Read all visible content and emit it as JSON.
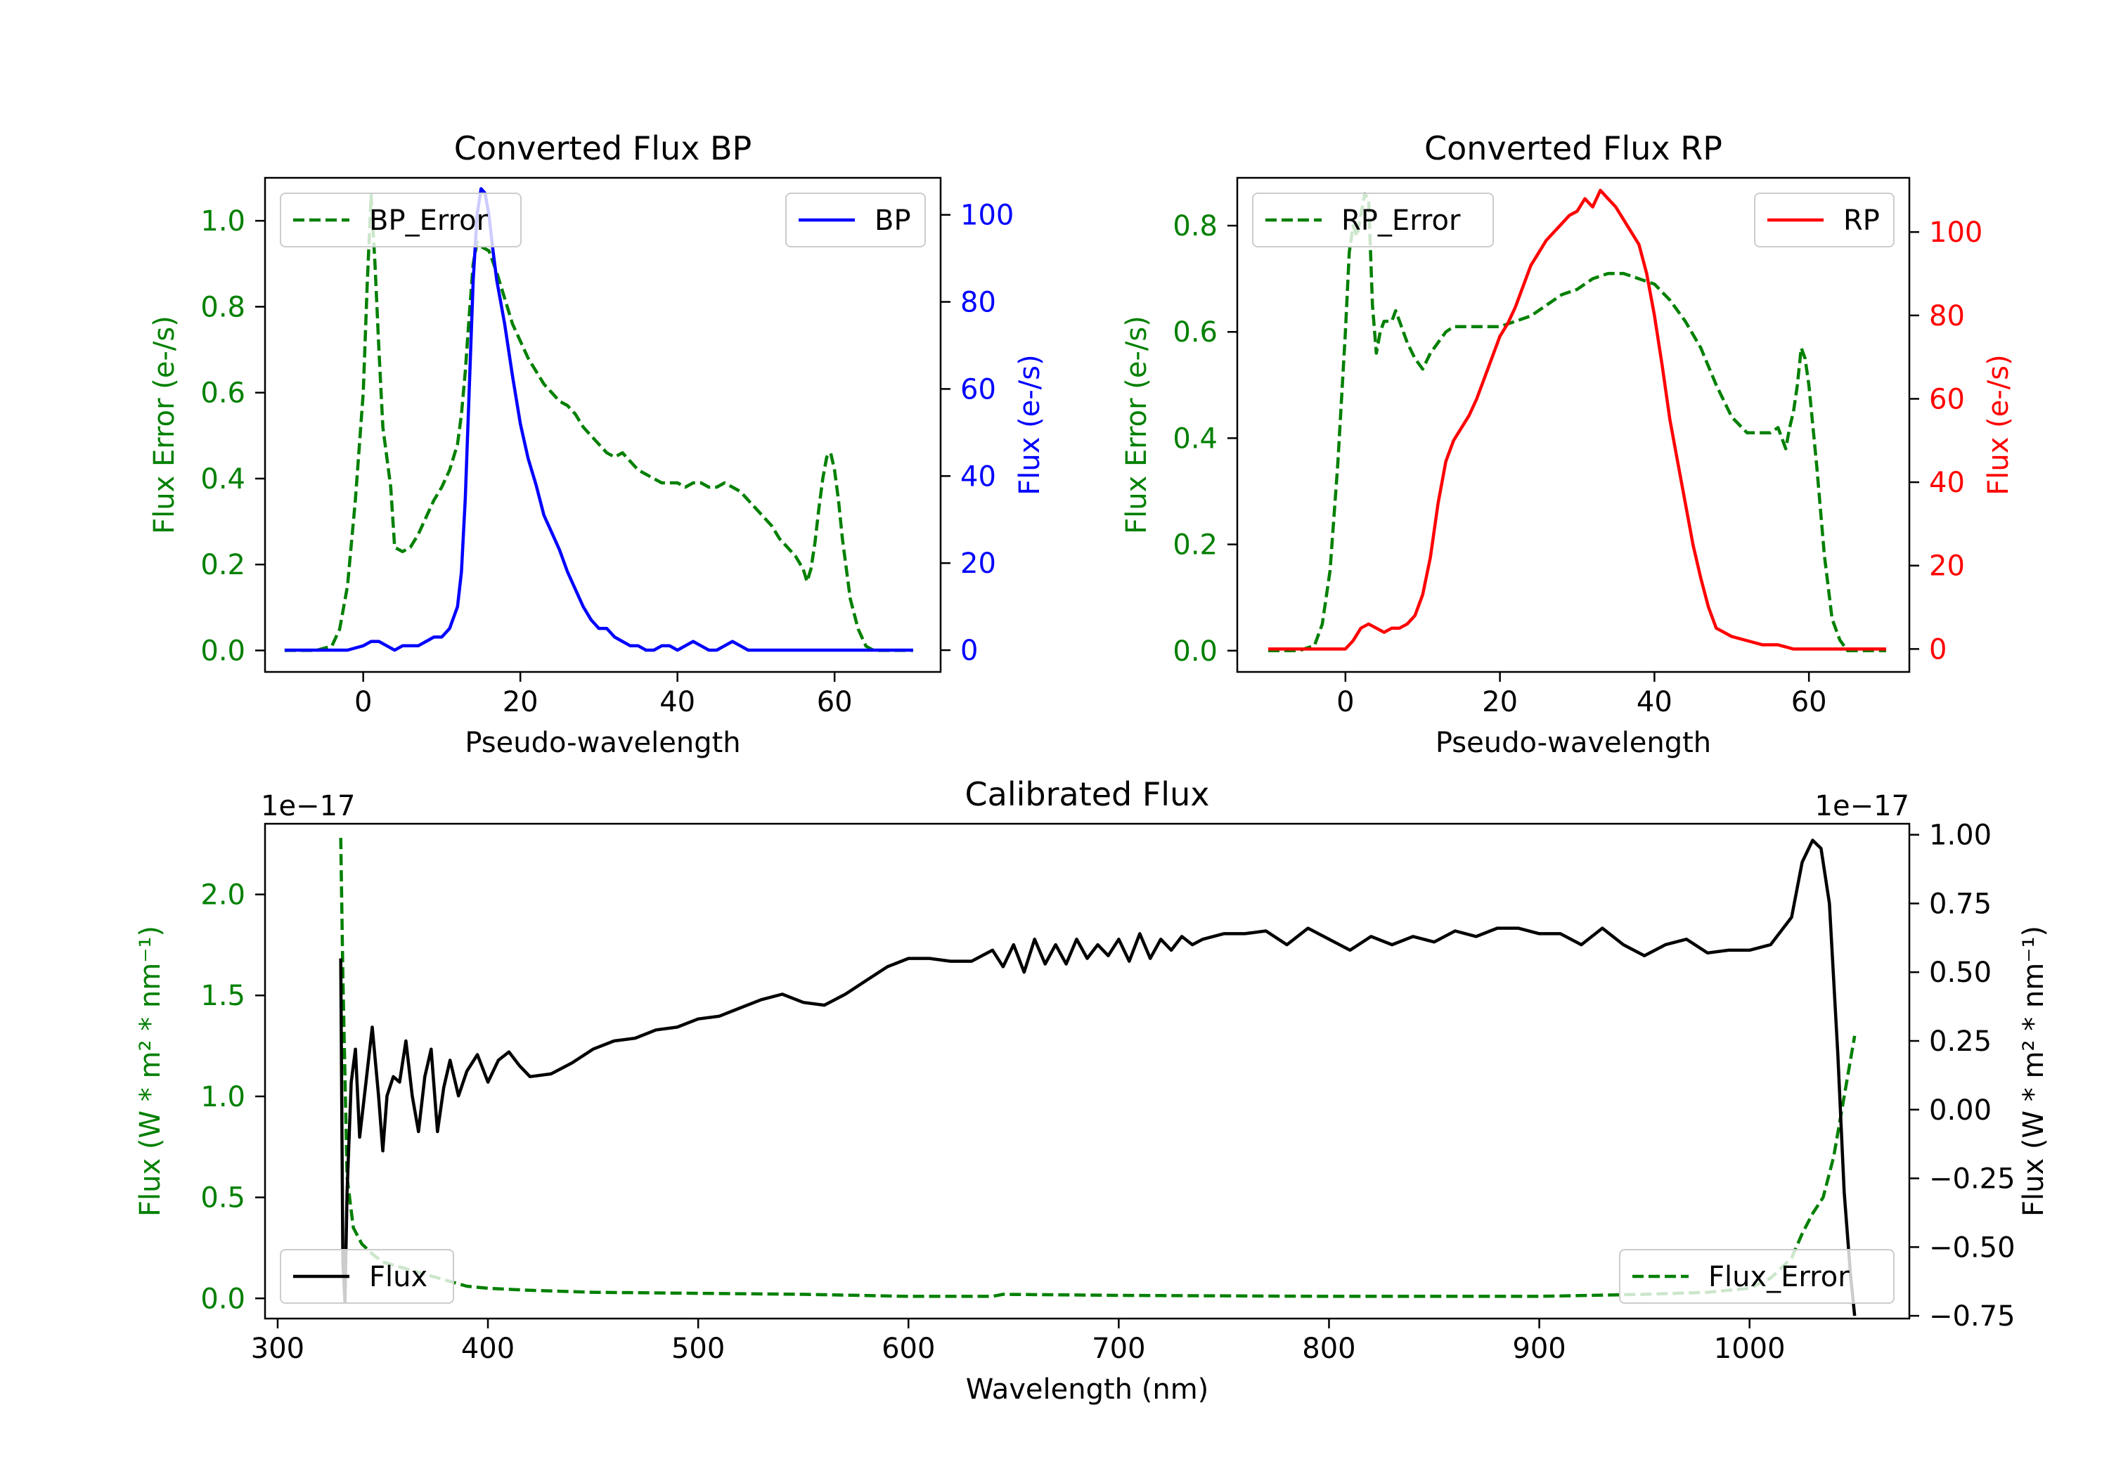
{
  "colors": {
    "green": "#008000",
    "blue": "#0000ff",
    "red": "#ff0000",
    "black": "#000000"
  },
  "chart_data": [
    {
      "id": "bp",
      "type": "line",
      "title": "Converted Flux BP",
      "xlabel": "Pseudo-wavelength",
      "ylabel_left": "Flux Error (e-/s)",
      "ylabel_right": "Flux (e-/s)",
      "xlim": [
        -12.5,
        73.5
      ],
      "ylim_left": [
        -0.05,
        1.1
      ],
      "ylim_right": [
        -5,
        108.5
      ],
      "xticks": [
        0,
        20,
        40,
        60
      ],
      "yticks_left": [
        0.0,
        0.2,
        0.4,
        0.6,
        0.8,
        1.0
      ],
      "yticks_right": [
        0,
        20,
        40,
        60,
        80,
        100
      ],
      "right_color_key": "blue",
      "series": [
        {
          "name": "BP_Error",
          "axis": "left",
          "style": "dashed",
          "color_key": "green",
          "x": [
            -10,
            -6,
            -4,
            -3,
            -2,
            -1,
            0,
            0.5,
            1,
            1.5,
            2,
            2.5,
            3,
            3.5,
            4,
            5,
            6,
            7,
            8,
            9,
            10,
            11,
            12,
            12.5,
            13,
            13.5,
            14,
            14.5,
            15,
            16,
            17,
            18,
            19,
            20,
            21,
            22,
            23,
            24,
            25,
            26,
            27,
            28,
            29,
            30,
            31,
            32,
            33,
            34,
            35,
            36,
            37,
            38,
            39,
            40,
            41,
            42,
            43,
            44,
            45,
            46,
            47,
            48,
            49,
            50,
            51,
            52,
            53,
            54,
            55,
            56,
            56.5,
            57,
            57.5,
            58,
            58.5,
            59,
            59.5,
            60,
            60.5,
            61,
            62,
            63,
            64,
            65,
            66,
            67,
            68,
            69,
            70
          ],
          "y": [
            0.0,
            0.0,
            0.01,
            0.05,
            0.15,
            0.35,
            0.6,
            0.85,
            1.06,
            0.9,
            0.7,
            0.52,
            0.45,
            0.38,
            0.24,
            0.23,
            0.24,
            0.27,
            0.31,
            0.35,
            0.38,
            0.42,
            0.48,
            0.55,
            0.65,
            0.78,
            0.9,
            0.95,
            0.94,
            0.93,
            0.88,
            0.82,
            0.76,
            0.72,
            0.68,
            0.65,
            0.62,
            0.6,
            0.58,
            0.57,
            0.55,
            0.52,
            0.5,
            0.48,
            0.46,
            0.45,
            0.46,
            0.44,
            0.42,
            0.41,
            0.4,
            0.39,
            0.39,
            0.39,
            0.38,
            0.39,
            0.39,
            0.38,
            0.38,
            0.39,
            0.38,
            0.37,
            0.35,
            0.33,
            0.31,
            0.29,
            0.26,
            0.24,
            0.22,
            0.19,
            0.16,
            0.19,
            0.25,
            0.33,
            0.4,
            0.45,
            0.46,
            0.42,
            0.35,
            0.26,
            0.12,
            0.05,
            0.01,
            0.0,
            0.0,
            0.0,
            0.0,
            0.0,
            0.0
          ]
        },
        {
          "name": "BP",
          "axis": "right",
          "style": "solid",
          "color_key": "blue",
          "x": [
            -10,
            -8,
            -6,
            -4,
            -2,
            0,
            1,
            2,
            3,
            4,
            5,
            6,
            7,
            8,
            9,
            10,
            11,
            12,
            12.5,
            13,
            13.5,
            14,
            14.5,
            15,
            15.5,
            16,
            16.5,
            17,
            18,
            19,
            20,
            21,
            22,
            23,
            24,
            25,
            26,
            27,
            28,
            29,
            30,
            31,
            32,
            33,
            34,
            35,
            36,
            37,
            38,
            39,
            40,
            41,
            42,
            43,
            44,
            45,
            46,
            47,
            48,
            49,
            50,
            52,
            54,
            56,
            58,
            60,
            62,
            64,
            66,
            68,
            70
          ],
          "y": [
            0,
            0,
            0,
            0,
            0,
            1,
            2,
            2,
            1,
            0,
            1,
            1,
            1,
            2,
            3,
            3,
            5,
            10,
            18,
            35,
            60,
            85,
            100,
            106,
            105,
            100,
            92,
            85,
            75,
            63,
            52,
            44,
            38,
            31,
            27,
            23,
            18,
            14,
            10,
            7,
            5,
            5,
            3,
            2,
            1,
            1,
            0,
            0,
            1,
            1,
            0,
            1,
            2,
            1,
            0,
            0,
            1,
            2,
            1,
            0,
            0,
            0,
            0,
            0,
            0,
            0,
            0,
            0,
            0,
            0,
            0
          ]
        }
      ],
      "legends": [
        {
          "label": "BP_Error",
          "position": "upper left",
          "series": "BP_Error"
        },
        {
          "label": "BP",
          "position": "upper right",
          "series": "BP"
        }
      ]
    },
    {
      "id": "rp",
      "type": "line",
      "title": "Converted Flux RP",
      "xlabel": "Pseudo-wavelength",
      "ylabel_left": "Flux Error (e-/s)",
      "ylabel_right": "Flux (e-/s)",
      "xlim": [
        -14,
        73
      ],
      "ylim_left": [
        -0.04,
        0.89
      ],
      "ylim_right": [
        -5.5,
        113
      ],
      "xticks": [
        0,
        20,
        40,
        60
      ],
      "yticks_left": [
        0.0,
        0.2,
        0.4,
        0.6,
        0.8
      ],
      "yticks_right": [
        0,
        20,
        40,
        60,
        80,
        100
      ],
      "right_color_key": "red",
      "series": [
        {
          "name": "RP_Error",
          "axis": "left",
          "style": "dashed",
          "color_key": "green",
          "x": [
            -10,
            -6,
            -4,
            -3,
            -2,
            -1,
            0,
            0.5,
            1,
            1.5,
            2,
            2.5,
            3,
            3.5,
            4,
            4.5,
            5,
            6,
            6.5,
            7,
            8,
            9,
            10,
            11,
            12,
            13,
            14,
            16,
            18,
            20,
            22,
            24,
            26,
            28,
            30,
            32,
            34,
            36,
            38,
            40,
            42,
            44,
            46,
            48,
            50,
            52,
            53,
            54,
            55,
            56,
            57,
            57.5,
            58,
            58.5,
            59,
            59.5,
            60,
            61,
            62,
            63,
            64,
            65,
            66,
            68,
            70
          ],
          "y": [
            0.0,
            0.0,
            0.01,
            0.05,
            0.15,
            0.35,
            0.6,
            0.75,
            0.8,
            0.78,
            0.82,
            0.86,
            0.85,
            0.65,
            0.56,
            0.6,
            0.62,
            0.62,
            0.64,
            0.62,
            0.58,
            0.55,
            0.53,
            0.56,
            0.58,
            0.6,
            0.61,
            0.61,
            0.61,
            0.61,
            0.62,
            0.63,
            0.65,
            0.67,
            0.68,
            0.7,
            0.71,
            0.71,
            0.7,
            0.69,
            0.66,
            0.62,
            0.57,
            0.5,
            0.44,
            0.41,
            0.41,
            0.41,
            0.41,
            0.42,
            0.38,
            0.42,
            0.45,
            0.5,
            0.57,
            0.55,
            0.5,
            0.35,
            0.18,
            0.06,
            0.02,
            0.0,
            0.0,
            0.0,
            0.0
          ]
        },
        {
          "name": "RP",
          "axis": "right",
          "style": "solid",
          "color_key": "red",
          "x": [
            -10,
            -6,
            -4,
            -2,
            0,
            1,
            2,
            3,
            4,
            5,
            6,
            7,
            8,
            9,
            10,
            11,
            12,
            13,
            14,
            15,
            16,
            17,
            18,
            19,
            20,
            21,
            22,
            23,
            24,
            25,
            26,
            27,
            28,
            29,
            30,
            31,
            32,
            33,
            34,
            35,
            36,
            37,
            38,
            39,
            40,
            41,
            42,
            43,
            44,
            45,
            46,
            47,
            48,
            49,
            50,
            52,
            54,
            56,
            58,
            60,
            62,
            64,
            66,
            68,
            70
          ],
          "y": [
            0,
            0,
            0,
            0,
            0,
            2,
            5,
            6,
            5,
            4,
            5,
            5,
            6,
            8,
            13,
            22,
            35,
            45,
            50,
            53,
            56,
            60,
            65,
            70,
            75,
            78,
            82,
            87,
            92,
            95,
            98,
            100,
            102,
            104,
            105,
            108,
            106,
            110,
            108,
            106,
            103,
            100,
            97,
            90,
            80,
            68,
            55,
            45,
            35,
            25,
            17,
            10,
            5,
            4,
            3,
            2,
            1,
            1,
            0,
            0,
            0,
            0,
            0,
            0,
            0
          ]
        }
      ],
      "legends": [
        {
          "label": "RP_Error",
          "position": "upper left",
          "series": "RP_Error"
        },
        {
          "label": "RP",
          "position": "upper right",
          "series": "RP"
        }
      ]
    },
    {
      "id": "cal",
      "type": "line",
      "title": "Calibrated Flux",
      "xlabel": "Wavelength (nm)",
      "ylabel_left": "Flux (W * m² * nm⁻¹)",
      "ylabel_right": "Flux (W * m² * nm⁻¹)",
      "offset_left": "1e−17",
      "offset_right": "1e−17",
      "xlim": [
        294,
        1076
      ],
      "ylim_left": [
        -0.1,
        2.35
      ],
      "ylim_right": [
        -0.76,
        1.04
      ],
      "xticks": [
        300,
        400,
        500,
        600,
        700,
        800,
        900,
        1000
      ],
      "yticks_left": [
        0.0,
        0.5,
        1.0,
        1.5,
        2.0
      ],
      "yticks_left_labels": [
        "0.0",
        "0.5",
        "1.0",
        "1.5",
        "2.0"
      ],
      "yticks_right": [
        -0.75,
        -0.5,
        -0.25,
        0.0,
        0.25,
        0.5,
        0.75,
        1.0
      ],
      "yticks_right_labels": [
        "−0.75",
        "−0.50",
        "−0.25",
        "0.00",
        "0.25",
        "0.50",
        "0.75",
        "1.00"
      ],
      "right_color_key": "black",
      "series": [
        {
          "name": "Flux_Error",
          "axis": "left",
          "style": "dashed",
          "color_key": "green",
          "x": [
            330,
            331,
            333,
            336,
            340,
            345,
            350,
            360,
            370,
            380,
            390,
            400,
            420,
            450,
            500,
            550,
            600,
            640,
            645,
            700,
            800,
            900,
            950,
            980,
            1000,
            1010,
            1020,
            1025,
            1030,
            1035,
            1040,
            1045,
            1050
          ],
          "y": [
            2.28,
            1.6,
            0.6,
            0.35,
            0.27,
            0.22,
            0.18,
            0.15,
            0.12,
            0.09,
            0.06,
            0.05,
            0.04,
            0.03,
            0.025,
            0.02,
            0.01,
            0.01,
            0.02,
            0.015,
            0.01,
            0.01,
            0.02,
            0.03,
            0.05,
            0.1,
            0.2,
            0.32,
            0.42,
            0.5,
            0.7,
            1.0,
            1.3
          ]
        },
        {
          "name": "Flux",
          "axis": "right",
          "style": "solid",
          "color_key": "black",
          "x": [
            330,
            331,
            332,
            333,
            335,
            337,
            339,
            342,
            345,
            348,
            350,
            352,
            355,
            358,
            361,
            364,
            367,
            370,
            373,
            376,
            379,
            382,
            386,
            390,
            395,
            400,
            405,
            410,
            415,
            420,
            430,
            440,
            450,
            460,
            470,
            480,
            490,
            500,
            510,
            520,
            530,
            540,
            550,
            560,
            570,
            580,
            590,
            600,
            610,
            620,
            630,
            640,
            645,
            650,
            655,
            660,
            665,
            670,
            675,
            680,
            685,
            690,
            695,
            700,
            705,
            710,
            715,
            720,
            725,
            730,
            735,
            740,
            750,
            760,
            770,
            780,
            790,
            800,
            810,
            820,
            830,
            840,
            850,
            860,
            870,
            880,
            890,
            900,
            910,
            920,
            930,
            940,
            950,
            960,
            970,
            980,
            990,
            1000,
            1010,
            1020,
            1025,
            1030,
            1034,
            1038,
            1042,
            1045,
            1048,
            1050
          ],
          "y": [
            0.55,
            -0.55,
            -0.7,
            -0.3,
            0.1,
            0.22,
            -0.1,
            0.1,
            0.3,
            0.05,
            -0.15,
            0.05,
            0.12,
            0.1,
            0.25,
            0.05,
            -0.08,
            0.12,
            0.22,
            -0.08,
            0.08,
            0.18,
            0.05,
            0.14,
            0.2,
            0.1,
            0.18,
            0.21,
            0.16,
            0.12,
            0.13,
            0.17,
            0.22,
            0.25,
            0.26,
            0.29,
            0.3,
            0.33,
            0.34,
            0.37,
            0.4,
            0.42,
            0.39,
            0.38,
            0.42,
            0.47,
            0.52,
            0.55,
            0.55,
            0.54,
            0.54,
            0.58,
            0.52,
            0.6,
            0.5,
            0.62,
            0.53,
            0.6,
            0.53,
            0.62,
            0.55,
            0.6,
            0.56,
            0.62,
            0.54,
            0.64,
            0.55,
            0.62,
            0.58,
            0.63,
            0.6,
            0.62,
            0.64,
            0.64,
            0.65,
            0.6,
            0.66,
            0.62,
            0.58,
            0.63,
            0.6,
            0.63,
            0.61,
            0.65,
            0.63,
            0.66,
            0.66,
            0.64,
            0.64,
            0.6,
            0.66,
            0.6,
            0.56,
            0.6,
            0.62,
            0.57,
            0.58,
            0.58,
            0.6,
            0.7,
            0.9,
            0.98,
            0.95,
            0.75,
            0.2,
            -0.3,
            -0.6,
            -0.75
          ]
        }
      ],
      "legends": [
        {
          "label": "Flux",
          "position": "lower left",
          "series": "Flux"
        },
        {
          "label": "Flux_Error",
          "position": "lower right",
          "series": "Flux_Error"
        }
      ]
    }
  ]
}
